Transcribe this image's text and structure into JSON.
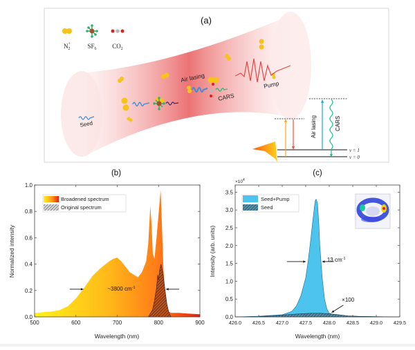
{
  "figure": {
    "panel_a": {
      "label": "(a)",
      "legend": [
        {
          "name": "N2+",
          "text": "N",
          "sub": "2",
          "sup": "+"
        },
        {
          "name": "SF6",
          "text": "SF",
          "sub": "6",
          "sup": ""
        },
        {
          "name": "CO2",
          "text": "CO",
          "sub": "2",
          "sup": ""
        }
      ],
      "beam_labels": {
        "seed": "Seed",
        "air_lasing": "Air lasing",
        "cars": "CARS",
        "pump": "Pump"
      },
      "energy_diagram": {
        "air_lasing": "Air lasing",
        "cars": "CARS",
        "level_v1": "v = 1",
        "level_v0": "v = 0"
      },
      "colors": {
        "beam": "#e8454a",
        "n2_molecule": "#f7c21a",
        "sf6_center": "#a0522d",
        "sf6_arms": "#2fb36b",
        "co2_outer": "#e02020",
        "co2_center": "#b8b8b8",
        "seed_wave": "#3b8fd6",
        "air_lasing_wave": "#3b8fd6",
        "cars_wave": "#2fbf7a",
        "pump_wave": "#e04848",
        "up_arrow_orange": "#f5a623",
        "down_arrow_red": "#e8504a",
        "air_lasing_arrow": "#1aa7d8",
        "cars_arrow": "#1fbf8f"
      }
    }
  },
  "chart_data": [
    {
      "id": "b",
      "type": "area",
      "panel_label": "(b)",
      "title": "",
      "xlabel": "Wavelength (nm)",
      "ylabel": "Normalized intensity",
      "xlim": [
        500,
        900
      ],
      "ylim": [
        0,
        1.0
      ],
      "xticks": [
        500,
        600,
        700,
        800,
        900
      ],
      "xtick_labels": [
        "500",
        "600",
        "700",
        "800",
        "900"
      ],
      "yticks": [
        0.0,
        0.2,
        0.4,
        0.6,
        0.8,
        1.0
      ],
      "ytick_labels": [
        "0.0",
        "0.2",
        "0.4",
        "0.6",
        "0.8",
        "1.0"
      ],
      "grid": false,
      "legend_position": "top-left",
      "series": [
        {
          "name": "Broadened spectrum",
          "fill": "gradient",
          "gradient_colors": [
            "#fff21a",
            "#ff9a1a",
            "#f03a10"
          ],
          "x": [
            500,
            520,
            540,
            560,
            580,
            600,
            620,
            640,
            660,
            680,
            690,
            700,
            710,
            720,
            730,
            740,
            750,
            760,
            770,
            775,
            780,
            783,
            786,
            790,
            795,
            800,
            805,
            808,
            812,
            816,
            820,
            825,
            830,
            850,
            870,
            900
          ],
          "y": [
            0.03,
            0.035,
            0.04,
            0.05,
            0.08,
            0.14,
            0.22,
            0.31,
            0.37,
            0.42,
            0.44,
            0.45,
            0.42,
            0.38,
            0.34,
            0.32,
            0.3,
            0.34,
            0.42,
            0.55,
            0.84,
            0.7,
            0.48,
            0.44,
            0.6,
            0.78,
            0.96,
            0.7,
            0.35,
            0.18,
            0.08,
            0.04,
            0.03,
            0.03,
            0.025,
            0.02
          ]
        },
        {
          "name": "Original spectrum",
          "fill": "hatch",
          "color": "#8a3a14",
          "x": [
            775,
            785,
            790,
            795,
            798,
            800,
            803,
            806,
            810,
            815,
            820,
            825,
            830
          ],
          "y": [
            0.0,
            0.05,
            0.12,
            0.22,
            0.32,
            0.28,
            0.36,
            0.4,
            0.34,
            0.22,
            0.1,
            0.03,
            0.0
          ]
        }
      ],
      "annotations": [
        {
          "text": "~3800 cm",
          "sup": "-1",
          "x": 710,
          "y": 0.2
        },
        {
          "type": "arrow",
          "direction": "right",
          "x_from": 585,
          "x_to": 618,
          "y": 0.21
        },
        {
          "type": "arrow",
          "direction": "left",
          "x_from": 850,
          "x_to": 818,
          "y": 0.21
        }
      ]
    },
    {
      "id": "c",
      "type": "area",
      "panel_label": "(c)",
      "title": "",
      "xlabel": "Wavelength (nm)",
      "ylabel": "Intensity (arb. units)",
      "y_multiplier_label": "×10",
      "y_multiplier_sup": "4",
      "xlim": [
        426.0,
        429.5
      ],
      "ylim": [
        0,
        3.7
      ],
      "xticks": [
        426.0,
        426.5,
        427.0,
        427.5,
        428.0,
        428.5,
        429.0,
        429.5
      ],
      "xtick_labels": [
        "426.0",
        "426.5",
        "427.0",
        "427.5",
        "428.0",
        "428.5",
        "429.0",
        "429.5"
      ],
      "yticks": [
        0.0,
        0.5,
        1.0,
        1.5,
        2.0,
        2.5,
        3.0,
        3.5
      ],
      "ytick_labels": [
        "0.0",
        "0.5",
        "1.0",
        "1.5",
        "2.0",
        "2.5",
        "3.0",
        "3.5"
      ],
      "grid": false,
      "legend_position": "top-left",
      "series": [
        {
          "name": "Seed+Pump",
          "fill": "solid",
          "color": "#4cc4ee",
          "x": [
            426.0,
            426.5,
            427.0,
            427.2,
            427.3,
            427.4,
            427.5,
            427.55,
            427.6,
            427.65,
            427.7,
            427.72,
            427.75,
            427.78,
            427.8,
            427.85,
            427.9,
            427.95,
            428.0,
            428.1,
            428.3,
            428.6,
            429.0,
            429.5
          ],
          "y": [
            0.0,
            0.02,
            0.06,
            0.15,
            0.3,
            0.6,
            1.1,
            1.55,
            2.1,
            2.7,
            3.25,
            3.3,
            3.2,
            2.6,
            2.0,
            1.1,
            0.5,
            0.22,
            0.1,
            0.06,
            0.03,
            0.015,
            0.005,
            0.0
          ]
        },
        {
          "name": "Seed",
          "fill": "hatch",
          "color": "#1c4f6e",
          "x": [
            426.0,
            426.5,
            426.8,
            427.0,
            427.3,
            427.6,
            427.8,
            428.0,
            428.2,
            428.4,
            428.6,
            429.0,
            429.5
          ],
          "y": [
            0.0,
            0.01,
            0.03,
            0.05,
            0.08,
            0.1,
            0.1,
            0.09,
            0.06,
            0.03,
            0.015,
            0.005,
            0.0
          ]
        }
      ],
      "annotations": [
        {
          "text": "13 cm",
          "sup": "-1",
          "x": 428.15,
          "y": 1.55
        },
        {
          "type": "arrow",
          "direction": "right",
          "x_from": 427.1,
          "x_to": 427.5,
          "y": 1.55
        },
        {
          "type": "arrow",
          "direction": "left",
          "x_from": 428.1,
          "x_to": 427.85,
          "y": 1.55
        },
        {
          "text": "×100",
          "x": 428.4,
          "y": 0.43
        },
        {
          "type": "arrow",
          "direction": "down-left",
          "x_from": 428.3,
          "y_from": 0.33,
          "x_to": 428.05,
          "y_to": 0.12
        }
      ],
      "inset": {
        "name": "beam-profile-image",
        "description": "far-field beam profile, ring with two hot lobes"
      }
    }
  ]
}
